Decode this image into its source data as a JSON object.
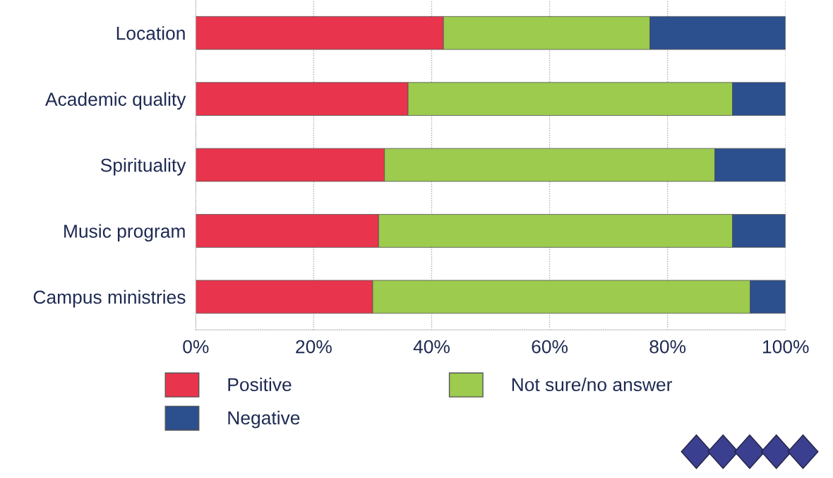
{
  "chart_data": {
    "type": "bar",
    "orientation": "horizontal",
    "stacked": true,
    "categories": [
      "Location",
      "Academic quality",
      "Spirituality",
      "Music program",
      "Campus ministries"
    ],
    "series": [
      {
        "name": "Positive",
        "color": "#e8344c",
        "values": [
          42,
          36,
          32,
          31,
          30
        ]
      },
      {
        "name": "Not sure/no answer",
        "color": "#9ccb4e",
        "values": [
          35,
          55,
          56,
          60,
          64
        ]
      },
      {
        "name": "Negative",
        "color": "#2c4f8e",
        "values": [
          23,
          9,
          12,
          9,
          6
        ]
      }
    ],
    "xlim": [
      0,
      100
    ],
    "xticks": [
      {
        "value": 0,
        "label": "0%"
      },
      {
        "value": 20,
        "label": "20%"
      },
      {
        "value": 40,
        "label": "40%"
      },
      {
        "value": 60,
        "label": "60%"
      },
      {
        "value": 80,
        "label": "80%"
      },
      {
        "value": 100,
        "label": "100%"
      }
    ],
    "grid": "x",
    "legend": "bottom"
  }
}
